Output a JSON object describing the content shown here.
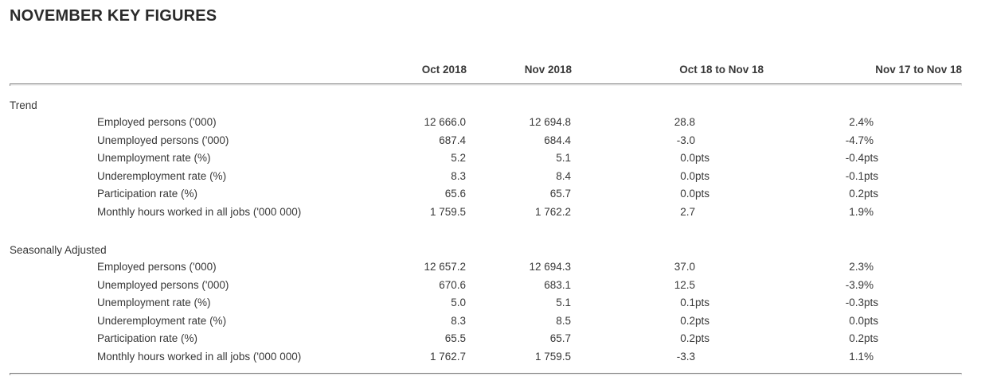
{
  "title": "NOVEMBER KEY FIGURES",
  "chart_data": {
    "type": "table",
    "title": "NOVEMBER KEY FIGURES",
    "columns": [
      "",
      "Oct 2018",
      "Nov 2018",
      "Oct 18 to Nov 18",
      "Nov 17 to Nov 18"
    ],
    "sections": [
      {
        "label": "Trend",
        "rows": [
          {
            "label": "Employed persons ('000)",
            "oct2018": "12 666.0",
            "nov2018": "12 694.8",
            "mom_num": "28.8",
            "mom_suffix": "",
            "yoy_num": "2.4",
            "yoy_suffix": "%"
          },
          {
            "label": "Unemployed persons ('000)",
            "oct2018": "687.4",
            "nov2018": "684.4",
            "mom_num": "-3.0",
            "mom_suffix": "",
            "yoy_num": "-4.7",
            "yoy_suffix": "%"
          },
          {
            "label": "Unemployment rate (%)",
            "oct2018": "5.2",
            "nov2018": "5.1",
            "mom_num": "0.0",
            "mom_suffix": "pts",
            "yoy_num": "-0.4",
            "yoy_suffix": "pts"
          },
          {
            "label": "Underemployment rate (%)",
            "oct2018": "8.3",
            "nov2018": "8.4",
            "mom_num": "0.0",
            "mom_suffix": "pts",
            "yoy_num": "-0.1",
            "yoy_suffix": "pts"
          },
          {
            "label": "Participation rate (%)",
            "oct2018": "65.6",
            "nov2018": "65.7",
            "mom_num": "0.0",
            "mom_suffix": "pts",
            "yoy_num": "0.2",
            "yoy_suffix": "pts"
          },
          {
            "label": "Monthly hours worked in all jobs ('000 000)",
            "oct2018": "1 759.5",
            "nov2018": "1 762.2",
            "mom_num": "2.7",
            "mom_suffix": "",
            "yoy_num": "1.9",
            "yoy_suffix": "%"
          }
        ]
      },
      {
        "label": "Seasonally Adjusted",
        "rows": [
          {
            "label": "Employed persons ('000)",
            "oct2018": "12 657.2",
            "nov2018": "12 694.3",
            "mom_num": "37.0",
            "mom_suffix": "",
            "yoy_num": "2.3",
            "yoy_suffix": "%"
          },
          {
            "label": "Unemployed persons ('000)",
            "oct2018": "670.6",
            "nov2018": "683.1",
            "mom_num": "12.5",
            "mom_suffix": "",
            "yoy_num": "-3.9",
            "yoy_suffix": "%"
          },
          {
            "label": "Unemployment rate (%)",
            "oct2018": "5.0",
            "nov2018": "5.1",
            "mom_num": "0.1",
            "mom_suffix": "pts",
            "yoy_num": "-0.3",
            "yoy_suffix": "pts"
          },
          {
            "label": "Underemployment rate (%)",
            "oct2018": "8.3",
            "nov2018": "8.5",
            "mom_num": "0.2",
            "mom_suffix": "pts",
            "yoy_num": "0.0",
            "yoy_suffix": "pts"
          },
          {
            "label": "Participation rate (%)",
            "oct2018": "65.5",
            "nov2018": "65.7",
            "mom_num": "0.2",
            "mom_suffix": "pts",
            "yoy_num": "0.2",
            "yoy_suffix": "pts"
          },
          {
            "label": "Monthly hours worked in all jobs ('000 000)",
            "oct2018": "1 762.7",
            "nov2018": "1 759.5",
            "mom_num": "-3.3",
            "mom_suffix": "",
            "yoy_num": "1.1",
            "yoy_suffix": "%"
          }
        ]
      }
    ]
  }
}
